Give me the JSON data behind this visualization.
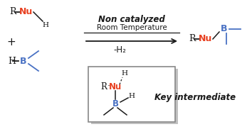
{
  "bg_color": "#ffffff",
  "black": "#1a1a1a",
  "red": "#e84020",
  "blue": "#4a72c4",
  "gray": "#999999",
  "title1": "Non catalyzed",
  "title2": "Room Temperature",
  "minus_h2": "-H₂",
  "key_label": "Key intermediate",
  "figsize": [
    3.54,
    1.89
  ],
  "dpi": 100
}
